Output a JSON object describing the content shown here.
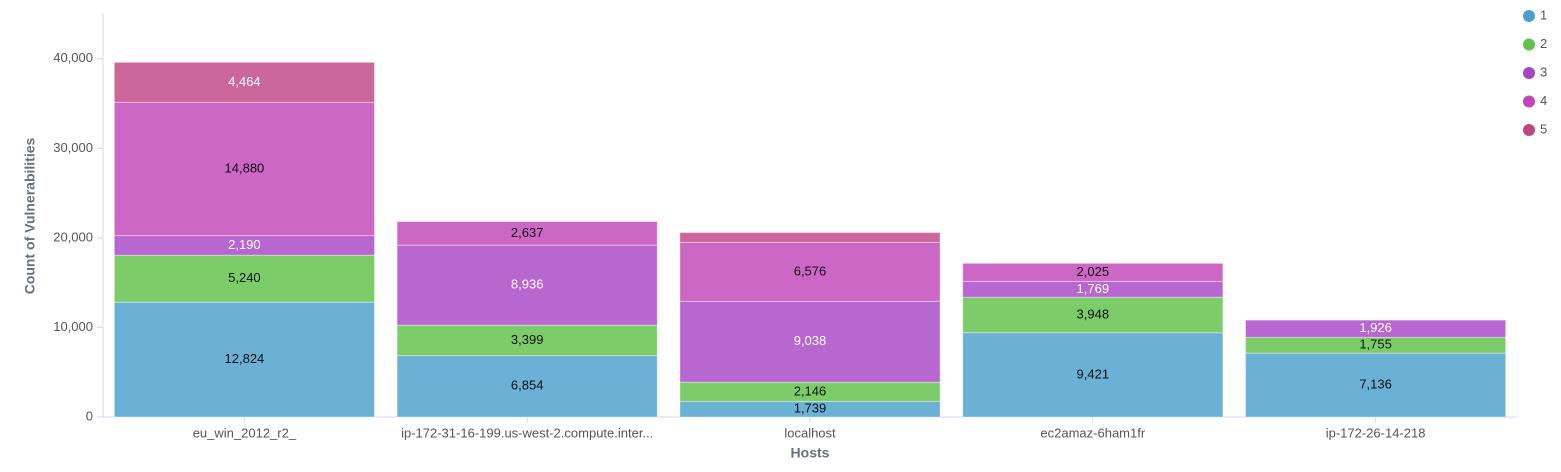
{
  "chart_data": {
    "type": "stacked_bar",
    "x_label": "Hosts",
    "y_label": "Count of Vulnerabilities",
    "categories": [
      "eu_win_2012_r2_",
      "ip-172-31-16-199.us-west-2.compute.inter...",
      "localhost",
      "ec2amaz-6ham1fr",
      "ip-172-26-14-218"
    ],
    "series": [
      {
        "name": "1",
        "color": "#4a9fcc",
        "values": [
          12824,
          6854,
          1739,
          9421,
          7136
        ],
        "value_labels": [
          "12,824",
          "6,854",
          "1,739",
          "9,421",
          "7,136"
        ]
      },
      {
        "name": "2",
        "color": "#5fc249",
        "values": [
          5240,
          3399,
          2146,
          3948,
          1755
        ],
        "value_labels": [
          "5,240",
          "3,399",
          "2,146",
          "3,948",
          "1,755"
        ]
      },
      {
        "name": "3",
        "color": "#a844c6",
        "values": [
          2190,
          8936,
          9038,
          1769,
          1926
        ],
        "value_labels": [
          "2,190",
          "8,936",
          "9,038",
          "1,769",
          "1,926"
        ]
      },
      {
        "name": "4",
        "color": "#c245b8",
        "values": [
          14880,
          2637,
          6576,
          2025,
          null
        ],
        "value_labels": [
          "14,880",
          "2,637",
          "6,576",
          "2,025",
          null
        ]
      },
      {
        "name": "5",
        "color": "#bf4585",
        "values": [
          4464,
          null,
          1100,
          null,
          null
        ],
        "value_labels": [
          "4,464",
          null,
          null,
          null,
          null
        ]
      }
    ],
    "ylim": [
      0,
      45000
    ],
    "yticks": [
      0,
      {
        "value": 10000,
        "label": "10,000"
      },
      {
        "value": 20000,
        "label": "20,000"
      },
      {
        "value": 30000,
        "label": "30,000"
      },
      {
        "value": 40000,
        "label": "40,000"
      }
    ],
    "legend": "top-right"
  }
}
